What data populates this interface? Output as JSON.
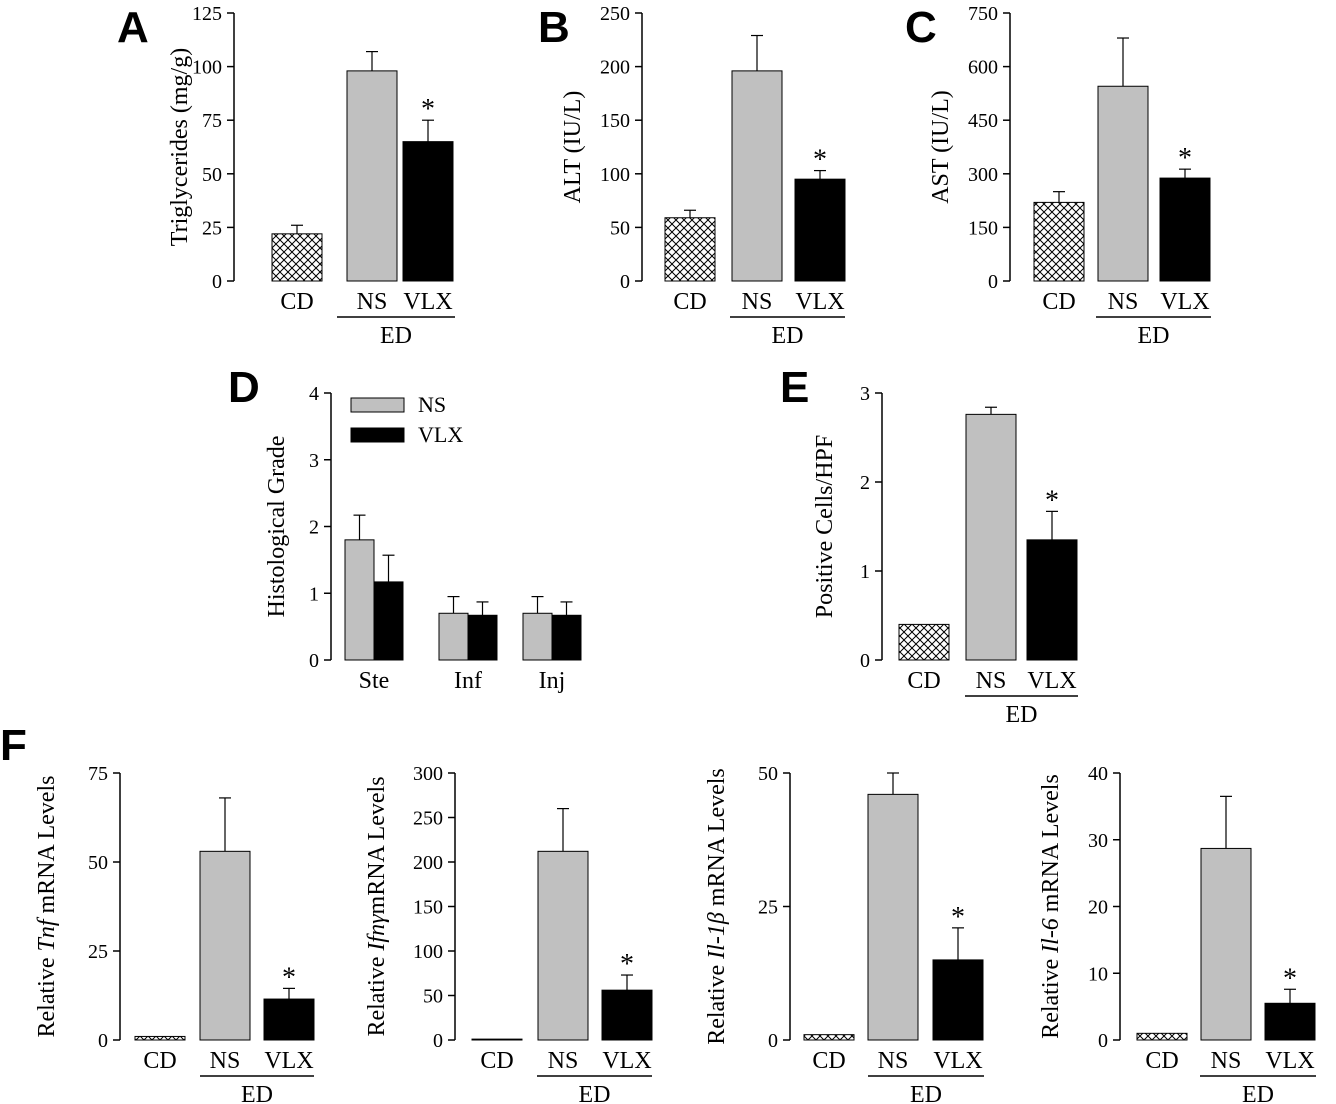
{
  "panels": [
    {
      "id": "A",
      "label": "A",
      "type": "bar",
      "ylabel": "Triglycerides (mg/g)",
      "ylim": [
        0,
        125
      ],
      "yticks": [
        0,
        25,
        50,
        75,
        100,
        125
      ],
      "categories": [
        "CD",
        "NS",
        "VLX"
      ],
      "values": [
        22,
        98,
        65
      ],
      "errors": [
        4,
        9,
        10
      ],
      "fills": [
        "hatch",
        "#c0c0c0",
        "#000000"
      ],
      "significance": [
        "",
        "",
        "*"
      ],
      "group_label": "ED"
    },
    {
      "id": "B",
      "label": "B",
      "type": "bar",
      "ylabel": "ALT (IU/L)",
      "ylim": [
        0,
        250
      ],
      "yticks": [
        0,
        50,
        100,
        150,
        200,
        250
      ],
      "categories": [
        "CD",
        "NS",
        "VLX"
      ],
      "values": [
        59,
        196,
        95
      ],
      "errors": [
        7,
        33,
        8
      ],
      "fills": [
        "hatch",
        "#c0c0c0",
        "#000000"
      ],
      "significance": [
        "",
        "",
        "*"
      ],
      "group_label": "ED"
    },
    {
      "id": "C",
      "label": "C",
      "type": "bar",
      "ylabel": "AST (IU/L)",
      "ylim": [
        0,
        750
      ],
      "yticks": [
        0,
        150,
        300,
        450,
        600,
        750
      ],
      "categories": [
        "CD",
        "NS",
        "VLX"
      ],
      "values": [
        220,
        545,
        288
      ],
      "errors": [
        30,
        135,
        25
      ],
      "fills": [
        "hatch",
        "#c0c0c0",
        "#000000"
      ],
      "significance": [
        "",
        "",
        "*"
      ],
      "group_label": "ED"
    },
    {
      "id": "D",
      "label": "D",
      "type": "grouped_bar",
      "ylabel": "Histological Grade",
      "ylim": [
        0,
        4
      ],
      "yticks": [
        0,
        1,
        2,
        3,
        4
      ],
      "categories": [
        "Ste",
        "Inf",
        "Inj"
      ],
      "series": [
        {
          "name": "NS",
          "fill": "#c0c0c0",
          "values": [
            1.8,
            0.7,
            0.7
          ],
          "errors": [
            0.37,
            0.25,
            0.25
          ]
        },
        {
          "name": "VLX",
          "fill": "#000000",
          "values": [
            1.17,
            0.67,
            0.67
          ],
          "errors": [
            0.4,
            0.2,
            0.2
          ]
        }
      ],
      "legend_position": "top-left"
    },
    {
      "id": "E",
      "label": "E",
      "type": "bar",
      "ylabel": "Positive Cells/HPF",
      "ylim": [
        0,
        3
      ],
      "yticks": [
        0,
        1,
        2,
        3
      ],
      "categories": [
        "CD",
        "NS",
        "VLX"
      ],
      "values": [
        0.4,
        2.76,
        1.35
      ],
      "errors": [
        0,
        0.08,
        0.32
      ],
      "fills": [
        "hatch",
        "#c0c0c0",
        "#000000"
      ],
      "significance": [
        "",
        "",
        "*"
      ],
      "group_label": "ED"
    },
    {
      "id": "F1",
      "label": "F",
      "type": "bar",
      "ylabel_prefix": "Relative ",
      "ylabel_gene": "Tnf",
      "ylabel_suffix": " mRNA Levels",
      "ylim": [
        0,
        75
      ],
      "yticks": [
        0,
        25,
        50,
        75
      ],
      "categories": [
        "CD",
        "NS",
        "VLX"
      ],
      "values": [
        1,
        53,
        11.5
      ],
      "errors": [
        0,
        15,
        3
      ],
      "fills": [
        "hatch",
        "#c0c0c0",
        "#000000"
      ],
      "significance": [
        "",
        "",
        "*"
      ],
      "group_label": "ED"
    },
    {
      "id": "F2",
      "label": "",
      "type": "bar",
      "ylabel_prefix": "Relative ",
      "ylabel_gene": "Ifnγ",
      "ylabel_suffix": "mRNA Levels",
      "ylim": [
        0,
        300
      ],
      "yticks": [
        0,
        50,
        100,
        150,
        200,
        250,
        300
      ],
      "categories": [
        "CD",
        "NS",
        "VLX"
      ],
      "values": [
        1,
        212,
        56
      ],
      "errors": [
        0,
        48,
        17
      ],
      "fills": [
        "hatch",
        "#c0c0c0",
        "#000000"
      ],
      "significance": [
        "",
        "",
        "*"
      ],
      "group_label": "ED"
    },
    {
      "id": "F3",
      "label": "",
      "type": "bar",
      "ylabel_prefix": "Relative ",
      "ylabel_gene": "Il-1β",
      "ylabel_suffix": " mRNA Levels",
      "ylim": [
        0,
        50
      ],
      "yticks": [
        0,
        25,
        50
      ],
      "categories": [
        "CD",
        "NS",
        "VLX"
      ],
      "values": [
        1,
        46,
        15
      ],
      "errors": [
        0,
        4,
        6
      ],
      "fills": [
        "hatch",
        "#c0c0c0",
        "#000000"
      ],
      "significance": [
        "",
        "",
        "*"
      ],
      "group_label": "ED"
    },
    {
      "id": "F4",
      "label": "",
      "type": "bar",
      "ylabel_prefix": "Relative ",
      "ylabel_gene": "Il-6",
      "ylabel_suffix": " mRNA Levels",
      "ylim": [
        0,
        40
      ],
      "yticks": [
        0,
        10,
        20,
        30,
        40
      ],
      "categories": [
        "CD",
        "NS",
        "VLX"
      ],
      "values": [
        1,
        28.7,
        5.5
      ],
      "errors": [
        0,
        7.8,
        2.1
      ],
      "fills": [
        "hatch",
        "#c0c0c0",
        "#000000"
      ],
      "significance": [
        "",
        "",
        "*"
      ],
      "group_label": "ED"
    }
  ]
}
